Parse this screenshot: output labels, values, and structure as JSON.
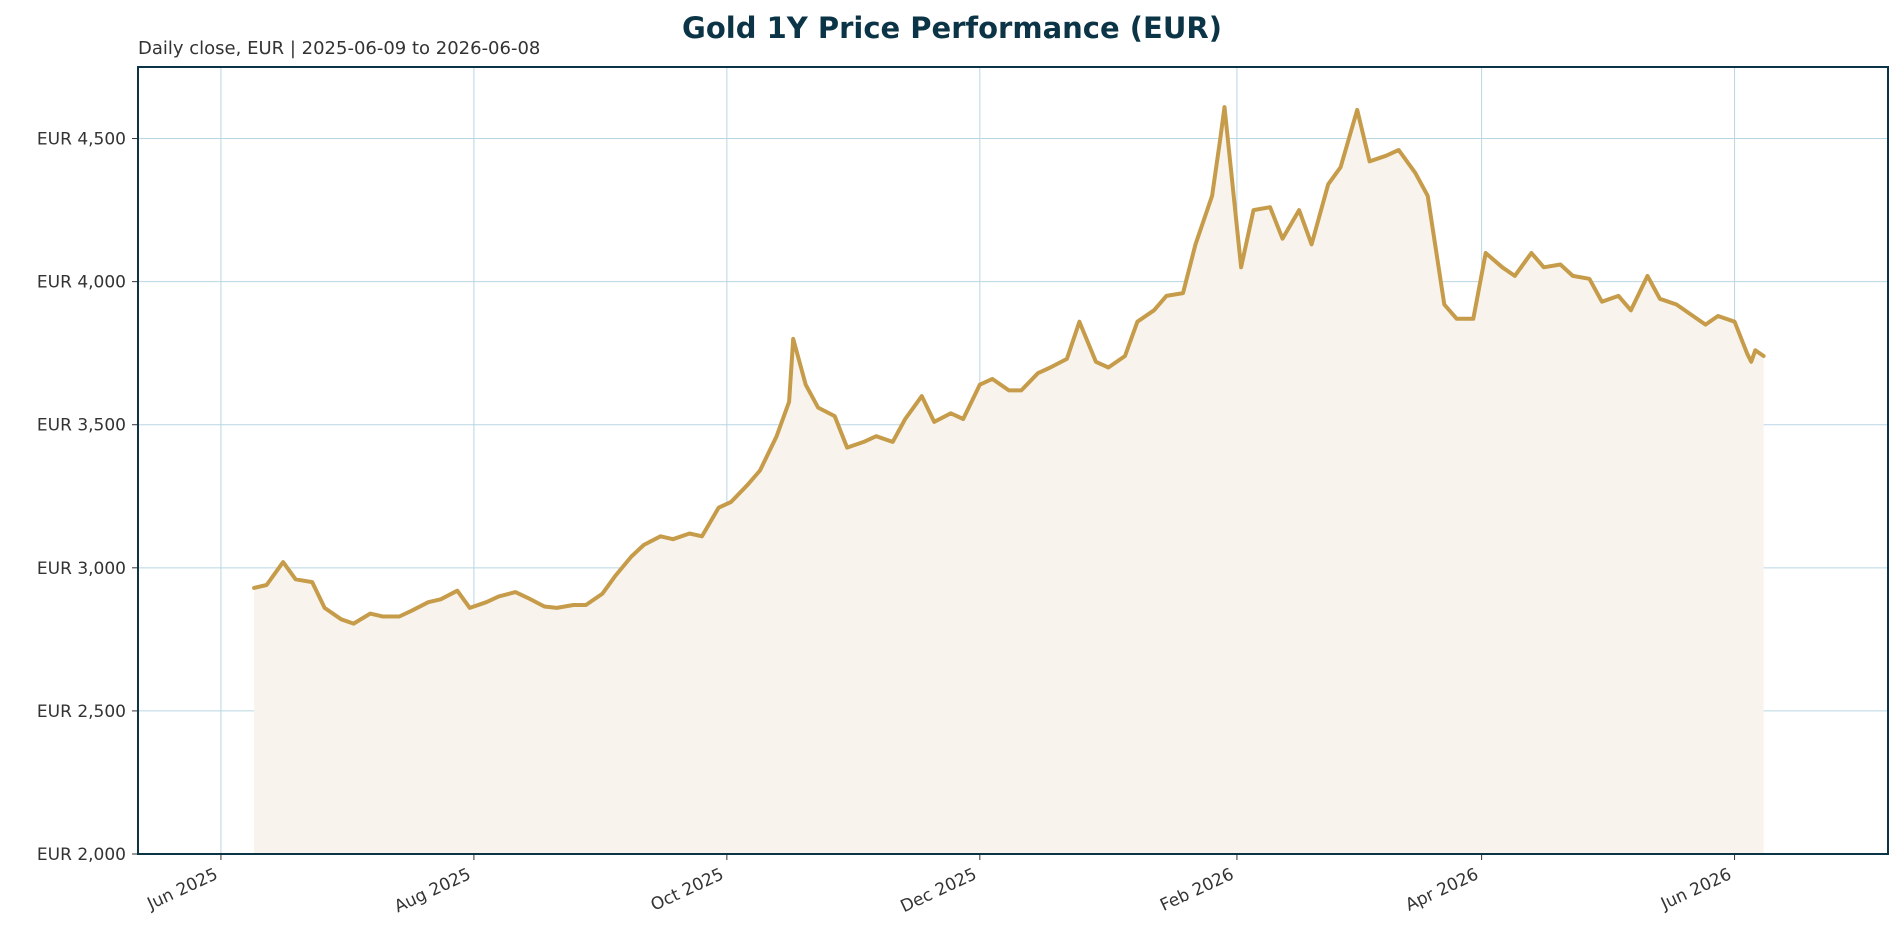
{
  "chart_data": {
    "type": "area",
    "title": "Gold 1Y Price Performance (EUR)",
    "subtitle": "Daily close, EUR | 2025-06-09 to 2026-06-08",
    "xlabel": "",
    "ylabel": "",
    "ylim": [
      2000,
      4750
    ],
    "xlim": [
      "2025-05-12",
      "2026-07-08"
    ],
    "grid": true,
    "y_ticks": [
      2000,
      2500,
      3000,
      3500,
      4000,
      4500
    ],
    "y_tick_labels": [
      "EUR 2,000",
      "EUR 2,500",
      "EUR 3,000",
      "EUR 3,500",
      "EUR 4,000",
      "EUR 4,500"
    ],
    "x_ticks": [
      "2025-06-01",
      "2025-08-01",
      "2025-10-01",
      "2025-12-01",
      "2026-02-01",
      "2026-04-01",
      "2026-06-01"
    ],
    "x_tick_labels": [
      "Jun 2025",
      "Aug 2025",
      "Oct 2025",
      "Dec 2025",
      "Feb 2026",
      "Apr 2026",
      "Jun 2026"
    ],
    "colors": {
      "line": "#c69c4a",
      "fill": "#f8f4ed",
      "grid": "#b9d6e3",
      "frame": "#0b3446",
      "title": "#0b3446"
    },
    "series": [
      {
        "dates": [
          "2025-06-09",
          "2025-06-12",
          "2025-06-16",
          "2025-06-19",
          "2025-06-23",
          "2025-06-26",
          "2025-06-30",
          "2025-07-03",
          "2025-07-07",
          "2025-07-10",
          "2025-07-14",
          "2025-07-17",
          "2025-07-21",
          "2025-07-24",
          "2025-07-28",
          "2025-07-31",
          "2025-08-04",
          "2025-08-07",
          "2025-08-11",
          "2025-08-14",
          "2025-08-18",
          "2025-08-21",
          "2025-08-25",
          "2025-08-28",
          "2025-09-01",
          "2025-09-04",
          "2025-09-08",
          "2025-09-11",
          "2025-09-15",
          "2025-09-18",
          "2025-09-22",
          "2025-09-25",
          "2025-09-29",
          "2025-10-02",
          "2025-10-06",
          "2025-10-09",
          "2025-10-13",
          "2025-10-16",
          "2025-10-17",
          "2025-10-20",
          "2025-10-23",
          "2025-10-27",
          "2025-10-30",
          "2025-11-03",
          "2025-11-06",
          "2025-11-10",
          "2025-11-13",
          "2025-11-17",
          "2025-11-20",
          "2025-11-24",
          "2025-11-27",
          "2025-12-01",
          "2025-12-04",
          "2025-12-08",
          "2025-12-11",
          "2025-12-15",
          "2025-12-18",
          "2025-12-22",
          "2025-12-25",
          "2025-12-29",
          "2026-01-01",
          "2026-01-05",
          "2026-01-08",
          "2026-01-12",
          "2026-01-15",
          "2026-01-19",
          "2026-01-22",
          "2026-01-26",
          "2026-01-28",
          "2026-01-29",
          "2026-02-02",
          "2026-02-05",
          "2026-02-09",
          "2026-02-12",
          "2026-02-16",
          "2026-02-19",
          "2026-02-23",
          "2026-02-26",
          "2026-03-02",
          "2026-03-05",
          "2026-03-09",
          "2026-03-12",
          "2026-03-16",
          "2026-03-19",
          "2026-03-23",
          "2026-03-26",
          "2026-03-30",
          "2026-04-02",
          "2026-04-06",
          "2026-04-09",
          "2026-04-13",
          "2026-04-16",
          "2026-04-20",
          "2026-04-23",
          "2026-04-27",
          "2026-04-30",
          "2026-05-04",
          "2026-05-07",
          "2026-05-11",
          "2026-05-14",
          "2026-05-18",
          "2026-05-21",
          "2026-05-25",
          "2026-05-28",
          "2026-06-01",
          "2026-06-04",
          "2026-06-05",
          "2026-06-06",
          "2026-06-08"
        ],
        "values": [
          2930,
          2940,
          3020,
          2960,
          2950,
          2860,
          2820,
          2805,
          2840,
          2830,
          2830,
          2850,
          2880,
          2890,
          2920,
          2860,
          2880,
          2900,
          2915,
          2895,
          2865,
          2860,
          2870,
          2870,
          2910,
          2970,
          3040,
          3080,
          3110,
          3100,
          3120,
          3110,
          3210,
          3230,
          3290,
          3340,
          3460,
          3580,
          3800,
          3640,
          3560,
          3530,
          3420,
          3440,
          3460,
          3440,
          3520,
          3600,
          3510,
          3540,
          3520,
          3640,
          3660,
          3620,
          3620,
          3680,
          3700,
          3730,
          3860,
          3720,
          3700,
          3740,
          3860,
          3900,
          3950,
          3960,
          4130,
          4300,
          4500,
          4610,
          4050,
          4250,
          4260,
          4150,
          4250,
          4130,
          4340,
          4400,
          4600,
          4420,
          4440,
          4460,
          4380,
          4300,
          3920,
          3870,
          3870,
          4100,
          4050,
          4020,
          4100,
          4050,
          4060,
          4020,
          4010,
          3930,
          3950,
          3900,
          4020,
          3940,
          3920,
          3890,
          3850,
          3880,
          3860,
          3750,
          3720,
          3760,
          3740
        ]
      }
    ]
  }
}
